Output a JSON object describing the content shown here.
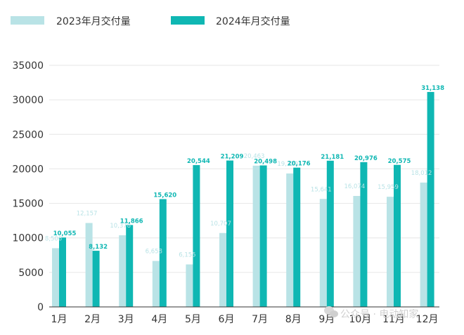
{
  "chart_data": {
    "type": "bar",
    "title": "",
    "xlabel": "",
    "ylabel": "",
    "ylim": [
      0,
      35000
    ],
    "yticks": [
      0,
      5000,
      10000,
      15000,
      20000,
      25000,
      30000,
      35000
    ],
    "ytick_labels": [
      "0",
      "5000",
      "10000",
      "15000",
      "20000",
      "25000",
      "30000",
      "35000"
    ],
    "grid": true,
    "legend_position": "top-left",
    "categories": [
      "1月",
      "2月",
      "3月",
      "4月",
      "5月",
      "6月",
      "7月",
      "8月",
      "9月",
      "10月",
      "11月",
      "12月"
    ],
    "series": [
      {
        "name": "2023年月交付量",
        "color": "#b9e3e6",
        "values": [
          8506,
          12157,
          10378,
          6658,
          6155,
          10707,
          20463,
          19329,
          15641,
          16074,
          15959,
          18012
        ],
        "labels": [
          "8,506",
          "12,157",
          "10,378",
          "6,658",
          "6,155",
          "10,707",
          "20,463",
          "19,329",
          "15,641",
          "16,074",
          "15,959",
          "18,012"
        ]
      },
      {
        "name": "2024年月交付量",
        "color": "#0fb7b3",
        "values": [
          10055,
          8132,
          11866,
          15620,
          20544,
          21209,
          20498,
          20176,
          21181,
          20976,
          20575,
          31138
        ],
        "labels": [
          "10,055",
          "8,132",
          "11,866",
          "15,620",
          "20,544",
          "21,209",
          "20,498",
          "20,176",
          "21,181",
          "20,976",
          "20,575",
          "31,138"
        ]
      }
    ]
  },
  "watermark": {
    "text": "公众号 · 电动知家"
  },
  "colors": {
    "grid": "#e6e6e6",
    "axis": "#333333"
  }
}
